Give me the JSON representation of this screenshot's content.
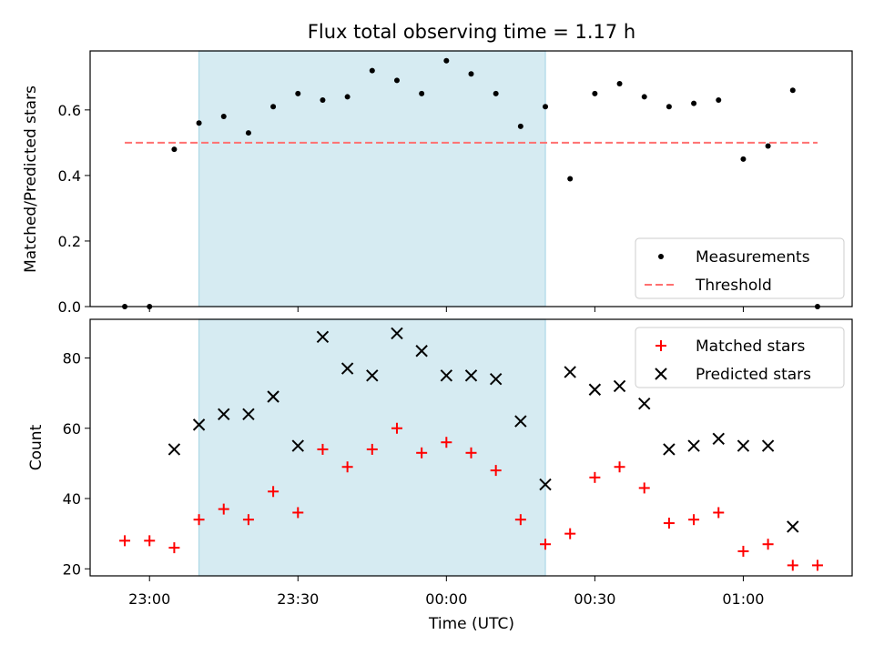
{
  "figure": {
    "title": "Flux total observing time = 1.17 h",
    "xlabel": "Time (UTC)",
    "x_ticks": [
      "23:00",
      "23:30",
      "00:00",
      "00:30",
      "01:00"
    ],
    "x_tick_minutes": [
      0,
      30,
      60,
      90,
      120
    ],
    "xlim_minutes": [
      -12,
      142
    ],
    "shaded_span_minutes": [
      10,
      80
    ],
    "shade_color": "#add8e6"
  },
  "chart_data": [
    {
      "type": "scatter",
      "title": "Flux total observing time = 1.17 h",
      "ylabel": "Matched/Predicted stars",
      "ylim": [
        0,
        0.78
      ],
      "y_ticks": [
        "0.0",
        "0.2",
        "0.4",
        "0.6"
      ],
      "y_tick_values": [
        0,
        0.2,
        0.4,
        0.6
      ],
      "legend_position": "lower-right",
      "x": [
        "22:55",
        "23:00",
        "23:05",
        "23:10",
        "23:15",
        "23:20",
        "23:25",
        "23:30",
        "23:35",
        "23:40",
        "23:45",
        "23:50",
        "23:55",
        "00:00",
        "00:05",
        "00:10",
        "00:15",
        "00:20",
        "00:25",
        "00:30",
        "00:35",
        "00:40",
        "00:45",
        "00:50",
        "00:55",
        "01:00",
        "01:05",
        "01:10",
        "01:15"
      ],
      "x_minutes": [
        -5,
        0,
        5,
        10,
        15,
        20,
        25,
        30,
        35,
        40,
        45,
        50,
        55,
        60,
        65,
        70,
        75,
        80,
        85,
        90,
        95,
        100,
        105,
        110,
        115,
        120,
        125,
        130,
        135
      ],
      "series": [
        {
          "name": "Measurements",
          "marker": "dot",
          "color": "#000000",
          "values": [
            0.0,
            0.0,
            0.48,
            0.56,
            0.58,
            0.53,
            0.61,
            0.65,
            0.63,
            0.64,
            0.72,
            0.69,
            0.65,
            0.75,
            0.71,
            0.65,
            0.55,
            0.61,
            0.39,
            0.65,
            0.68,
            0.64,
            0.61,
            0.62,
            0.63,
            0.45,
            0.49,
            0.66,
            0.0
          ]
        },
        {
          "name": "Threshold",
          "marker": "dashed-line",
          "color": "#ff7070",
          "x_minutes": [
            -5,
            135
          ],
          "values": [
            0.5,
            0.5
          ]
        }
      ]
    },
    {
      "type": "scatter",
      "ylabel": "Count",
      "ylim": [
        18,
        91
      ],
      "y_ticks": [
        "20",
        "40",
        "60",
        "80"
      ],
      "y_tick_values": [
        20,
        40,
        60,
        80
      ],
      "legend_position": "upper-right",
      "series": [
        {
          "name": "Matched stars",
          "marker": "plus",
          "color": "#ff0000",
          "x_minutes": [
            -5,
            0,
            5,
            10,
            15,
            20,
            25,
            30,
            35,
            40,
            45,
            50,
            55,
            60,
            65,
            70,
            75,
            80,
            85,
            90,
            95,
            100,
            105,
            110,
            115,
            120,
            125,
            130,
            135
          ],
          "values": [
            28,
            28,
            26,
            34,
            37,
            34,
            42,
            36,
            54,
            49,
            54,
            60,
            53,
            56,
            53,
            48,
            34,
            27,
            30,
            46,
            49,
            43,
            33,
            34,
            36,
            25,
            27,
            21,
            21
          ]
        },
        {
          "name": "Predicted stars",
          "marker": "x",
          "color": "#000000",
          "x_minutes": [
            5,
            10,
            15,
            20,
            25,
            30,
            35,
            40,
            45,
            50,
            55,
            60,
            65,
            70,
            75,
            80,
            85,
            90,
            95,
            100,
            105,
            110,
            115,
            120,
            125,
            130
          ],
          "values": [
            54,
            61,
            64,
            64,
            69,
            55,
            86,
            77,
            75,
            87,
            82,
            75,
            75,
            74,
            62,
            44,
            76,
            71,
            72,
            67,
            54,
            55,
            57,
            55,
            55,
            32
          ]
        }
      ]
    }
  ]
}
